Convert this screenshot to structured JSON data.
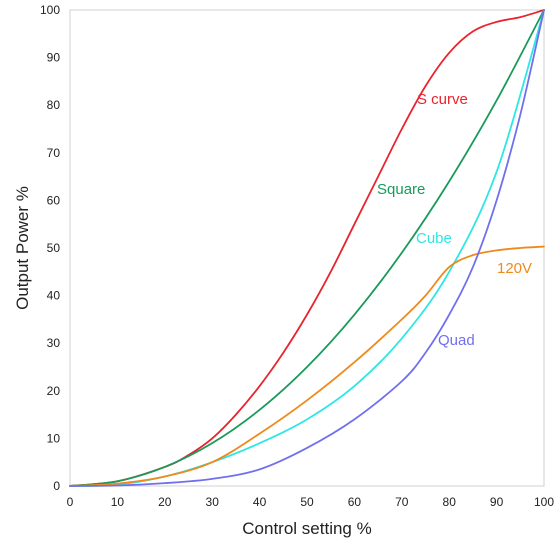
{
  "chart_data": {
    "type": "line",
    "title": "",
    "xlabel": "Control setting %",
    "ylabel": "Output Power %",
    "xlim": [
      0,
      100
    ],
    "ylim": [
      0,
      100
    ],
    "xticks": [
      0,
      10,
      20,
      30,
      40,
      50,
      60,
      70,
      80,
      90,
      100
    ],
    "yticks": [
      0,
      10,
      20,
      30,
      40,
      50,
      60,
      70,
      80,
      90,
      100
    ],
    "grid": false,
    "legend": "none (series labeled inline)",
    "series": [
      {
        "name": "S curve",
        "color": "#e8242e",
        "x": [
          0,
          10,
          20,
          25,
          30,
          35,
          40,
          45,
          50,
          55,
          60,
          65,
          70,
          75,
          80,
          85,
          90,
          95,
          100
        ],
        "y": [
          0,
          1,
          4,
          6.5,
          10,
          15,
          21,
          28,
          36,
          45,
          55,
          65,
          75,
          84,
          91,
          95.5,
          97.5,
          98.5,
          100
        ]
      },
      {
        "name": "Square",
        "color": "#1a9a5a",
        "x": [
          0,
          10,
          20,
          30,
          40,
          50,
          60,
          70,
          80,
          90,
          100
        ],
        "y": [
          0,
          1,
          4,
          9,
          16,
          25,
          36,
          49,
          64,
          81,
          100
        ]
      },
      {
        "name": "Cube",
        "color": "#2ee6e6",
        "x": [
          0,
          10,
          20,
          30,
          40,
          50,
          60,
          70,
          80,
          90,
          100
        ],
        "y": [
          0,
          0.3,
          2,
          5,
          9,
          14,
          21,
          31,
          45,
          66,
          100
        ]
      },
      {
        "name": "120V",
        "color": "#ee8a1c",
        "x": [
          0,
          10,
          20,
          30,
          40,
          50,
          60,
          70,
          75,
          80,
          85,
          90,
          95,
          100
        ],
        "y": [
          0,
          0.5,
          2,
          5,
          11,
          18,
          26,
          35,
          40,
          46,
          48.5,
          49.5,
          50,
          50.3
        ]
      },
      {
        "name": "Quad",
        "color": "#7070ee",
        "x": [
          0,
          10,
          20,
          30,
          40,
          50,
          60,
          70,
          75,
          80,
          85,
          90,
          95,
          100
        ],
        "y": [
          0,
          0.1,
          0.6,
          1.5,
          3.5,
          8,
          14,
          22,
          28,
          36,
          46,
          60,
          78,
          100
        ]
      }
    ]
  }
}
